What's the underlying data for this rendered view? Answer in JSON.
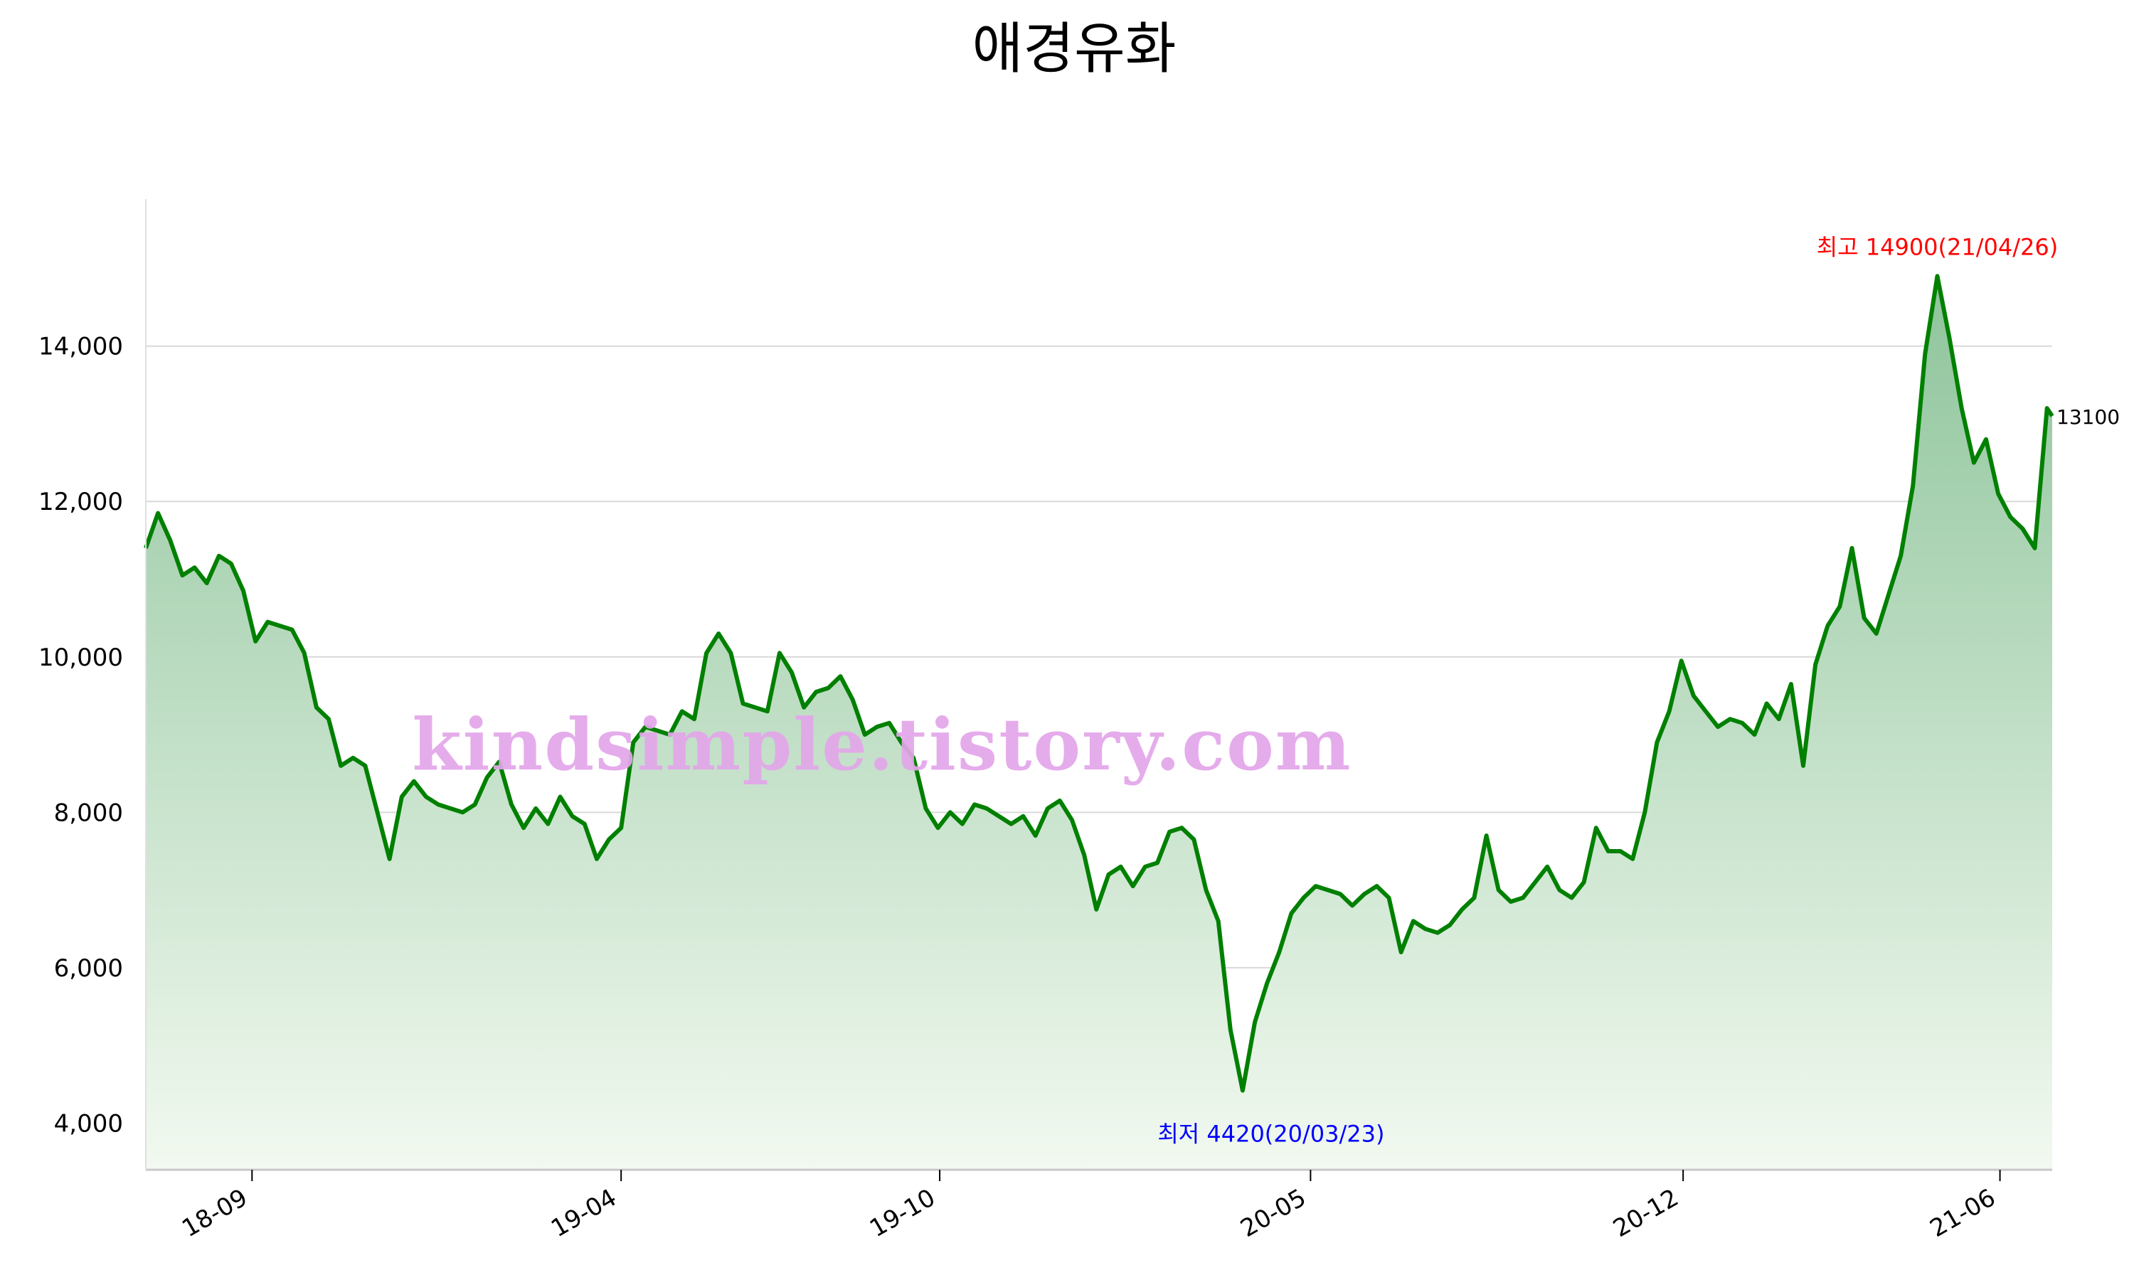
{
  "chart_data": {
    "type": "area",
    "title": "애경유화",
    "xlabel": "",
    "ylabel": "",
    "x_tick_labels": [
      "18-09",
      "19-04",
      "19-10",
      "20-05",
      "20-12",
      "21-06"
    ],
    "x_tick_dates": [
      "2018-09-01",
      "2019-04-01",
      "2019-10-01",
      "2020-05-01",
      "2020-12-01",
      "2021-06-01"
    ],
    "x_range": [
      "2018-07-02",
      "2021-07-01"
    ],
    "y_ticks": [
      4000,
      6000,
      8000,
      10000,
      12000,
      14000
    ],
    "y_tick_labels": [
      "4,000",
      "6,000",
      "8,000",
      "10,000",
      "12,000",
      "14,000"
    ],
    "ylim": [
      3400,
      15800
    ],
    "grid": true,
    "legend": "none",
    "series": [
      {
        "color": "#008000",
        "fill_top": "#8ec49b",
        "fill_bottom": "#f2f9f0",
        "points": [
          [
            "2018-07-02",
            11400
          ],
          [
            "2018-07-09",
            11850
          ],
          [
            "2018-07-16",
            11500
          ],
          [
            "2018-07-23",
            11050
          ],
          [
            "2018-07-30",
            11150
          ],
          [
            "2018-08-06",
            10950
          ],
          [
            "2018-08-13",
            11300
          ],
          [
            "2018-08-20",
            11200
          ],
          [
            "2018-08-27",
            10850
          ],
          [
            "2018-09-03",
            10200
          ],
          [
            "2018-09-10",
            10450
          ],
          [
            "2018-09-17",
            10400
          ],
          [
            "2018-09-24",
            10350
          ],
          [
            "2018-10-01",
            10050
          ],
          [
            "2018-10-08",
            9350
          ],
          [
            "2018-10-15",
            9200
          ],
          [
            "2018-10-22",
            8600
          ],
          [
            "2018-10-29",
            8700
          ],
          [
            "2018-11-05",
            8600
          ],
          [
            "2018-11-12",
            8000
          ],
          [
            "2018-11-19",
            7400
          ],
          [
            "2018-11-26",
            8200
          ],
          [
            "2018-12-03",
            8400
          ],
          [
            "2018-12-10",
            8200
          ],
          [
            "2018-12-17",
            8100
          ],
          [
            "2018-12-24",
            8050
          ],
          [
            "2018-12-31",
            8000
          ],
          [
            "2019-01-07",
            8100
          ],
          [
            "2019-01-14",
            8450
          ],
          [
            "2019-01-21",
            8650
          ],
          [
            "2019-01-28",
            8100
          ],
          [
            "2019-02-04",
            7800
          ],
          [
            "2019-02-11",
            8050
          ],
          [
            "2019-02-18",
            7850
          ],
          [
            "2019-02-25",
            8200
          ],
          [
            "2019-03-04",
            7950
          ],
          [
            "2019-03-11",
            7850
          ],
          [
            "2019-03-18",
            7400
          ],
          [
            "2019-03-25",
            7650
          ],
          [
            "2019-04-01",
            7800
          ],
          [
            "2019-04-08",
            8900
          ],
          [
            "2019-04-15",
            9100
          ],
          [
            "2019-04-22",
            9050
          ],
          [
            "2019-04-29",
            9000
          ],
          [
            "2019-05-06",
            9300
          ],
          [
            "2019-05-13",
            9200
          ],
          [
            "2019-05-20",
            10050
          ],
          [
            "2019-05-27",
            10300
          ],
          [
            "2019-06-03",
            10050
          ],
          [
            "2019-06-10",
            9400
          ],
          [
            "2019-06-17",
            9350
          ],
          [
            "2019-06-24",
            9300
          ],
          [
            "2019-07-01",
            10050
          ],
          [
            "2019-07-08",
            9800
          ],
          [
            "2019-07-15",
            9350
          ],
          [
            "2019-07-22",
            9550
          ],
          [
            "2019-07-29",
            9600
          ],
          [
            "2019-08-05",
            9750
          ],
          [
            "2019-08-12",
            9450
          ],
          [
            "2019-08-19",
            9000
          ],
          [
            "2019-08-26",
            9100
          ],
          [
            "2019-09-02",
            9150
          ],
          [
            "2019-09-09",
            8900
          ],
          [
            "2019-09-16",
            8700
          ],
          [
            "2019-09-23",
            8050
          ],
          [
            "2019-09-30",
            7800
          ],
          [
            "2019-10-07",
            8000
          ],
          [
            "2019-10-14",
            7850
          ],
          [
            "2019-10-21",
            8100
          ],
          [
            "2019-10-28",
            8050
          ],
          [
            "2019-11-04",
            7950
          ],
          [
            "2019-11-11",
            7850
          ],
          [
            "2019-11-18",
            7950
          ],
          [
            "2019-11-25",
            7700
          ],
          [
            "2019-12-02",
            8050
          ],
          [
            "2019-12-09",
            8150
          ],
          [
            "2019-12-16",
            7900
          ],
          [
            "2019-12-23",
            7450
          ],
          [
            "2019-12-30",
            6750
          ],
          [
            "2020-01-06",
            7200
          ],
          [
            "2020-01-13",
            7300
          ],
          [
            "2020-01-20",
            7050
          ],
          [
            "2020-01-27",
            7300
          ],
          [
            "2020-02-03",
            7350
          ],
          [
            "2020-02-10",
            7750
          ],
          [
            "2020-02-17",
            7800
          ],
          [
            "2020-02-24",
            7650
          ],
          [
            "2020-03-02",
            7000
          ],
          [
            "2020-03-09",
            6600
          ],
          [
            "2020-03-16",
            5200
          ],
          [
            "2020-03-23",
            4420
          ],
          [
            "2020-03-30",
            5300
          ],
          [
            "2020-04-06",
            5800
          ],
          [
            "2020-04-13",
            6200
          ],
          [
            "2020-04-20",
            6700
          ],
          [
            "2020-04-27",
            6900
          ],
          [
            "2020-05-04",
            7050
          ],
          [
            "2020-05-11",
            7000
          ],
          [
            "2020-05-18",
            6950
          ],
          [
            "2020-05-25",
            6800
          ],
          [
            "2020-06-01",
            6950
          ],
          [
            "2020-06-08",
            7050
          ],
          [
            "2020-06-15",
            6900
          ],
          [
            "2020-06-22",
            6200
          ],
          [
            "2020-06-29",
            6600
          ],
          [
            "2020-07-06",
            6500
          ],
          [
            "2020-07-13",
            6450
          ],
          [
            "2020-07-20",
            6550
          ],
          [
            "2020-07-27",
            6750
          ],
          [
            "2020-08-03",
            6900
          ],
          [
            "2020-08-10",
            7700
          ],
          [
            "2020-08-17",
            7000
          ],
          [
            "2020-08-24",
            6850
          ],
          [
            "2020-08-31",
            6900
          ],
          [
            "2020-09-07",
            7100
          ],
          [
            "2020-09-14",
            7300
          ],
          [
            "2020-09-21",
            7000
          ],
          [
            "2020-09-28",
            6900
          ],
          [
            "2020-10-05",
            7100
          ],
          [
            "2020-10-12",
            7800
          ],
          [
            "2020-10-19",
            7500
          ],
          [
            "2020-10-26",
            7500
          ],
          [
            "2020-11-02",
            7400
          ],
          [
            "2020-11-09",
            8000
          ],
          [
            "2020-11-16",
            8900
          ],
          [
            "2020-11-23",
            9300
          ],
          [
            "2020-11-30",
            9950
          ],
          [
            "2020-12-07",
            9500
          ],
          [
            "2020-12-14",
            9300
          ],
          [
            "2020-12-21",
            9100
          ],
          [
            "2020-12-28",
            9200
          ],
          [
            "2021-01-04",
            9150
          ],
          [
            "2021-01-11",
            9000
          ],
          [
            "2021-01-18",
            9400
          ],
          [
            "2021-01-25",
            9200
          ],
          [
            "2021-02-01",
            9650
          ],
          [
            "2021-02-08",
            8600
          ],
          [
            "2021-02-15",
            9900
          ],
          [
            "2021-02-22",
            10400
          ],
          [
            "2021-03-01",
            10650
          ],
          [
            "2021-03-08",
            11400
          ],
          [
            "2021-03-15",
            10500
          ],
          [
            "2021-03-22",
            10300
          ],
          [
            "2021-03-29",
            10800
          ],
          [
            "2021-04-05",
            11300
          ],
          [
            "2021-04-12",
            12200
          ],
          [
            "2021-04-19",
            13900
          ],
          [
            "2021-04-26",
            14900
          ],
          [
            "2021-05-03",
            14100
          ],
          [
            "2021-05-10",
            13200
          ],
          [
            "2021-05-17",
            12500
          ],
          [
            "2021-05-24",
            12800
          ],
          [
            "2021-05-31",
            12100
          ],
          [
            "2021-06-07",
            11800
          ],
          [
            "2021-06-14",
            11650
          ],
          [
            "2021-06-21",
            11400
          ],
          [
            "2021-06-28",
            13200
          ],
          [
            "2021-07-01",
            13100
          ]
        ]
      }
    ],
    "annotations": {
      "high": {
        "label": "최고 14900(21/04/26)",
        "date": "2021-04-26",
        "value": 14900,
        "color": "#ff0000"
      },
      "low": {
        "label": "최저 4420(20/03/23)",
        "date": "2020-03-23",
        "value": 4420,
        "color": "#0000ff"
      },
      "last": {
        "label": "13100",
        "date": "2021-07-01",
        "value": 13100,
        "color": "#000000"
      }
    },
    "watermark": "kindsimple.tistory.com"
  }
}
